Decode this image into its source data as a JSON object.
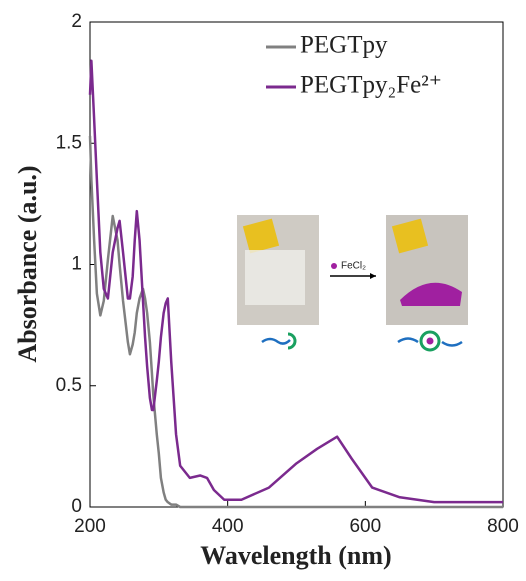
{
  "chart_data": {
    "type": "line",
    "xlabel": "Wavelength (nm)",
    "ylabel": "Absorbance (a.u.)",
    "annotation": "FeCl₂",
    "x": [
      200,
      202,
      206,
      210,
      215,
      220,
      226,
      233,
      240,
      243,
      248,
      255,
      258,
      262,
      265,
      268,
      272,
      277,
      280,
      283,
      287,
      290,
      292,
      297,
      300,
      303,
      307,
      310,
      313,
      318,
      325,
      331,
      345,
      360,
      370,
      380,
      395,
      420,
      460,
      500,
      530,
      559,
      580,
      610,
      650,
      700,
      800
    ],
    "series": [
      {
        "name": "PEGTpy",
        "color": "#808080",
        "values": [
          1.53,
          1.35,
          1.1,
          0.88,
          0.79,
          0.85,
          1.02,
          1.2,
          1.1,
          1.0,
          0.85,
          0.68,
          0.63,
          0.67,
          0.72,
          0.8,
          0.86,
          0.9,
          0.86,
          0.8,
          0.68,
          0.55,
          0.46,
          0.3,
          0.22,
          0.12,
          0.06,
          0.03,
          0.02,
          0.01,
          0.01,
          0,
          0,
          0,
          0,
          0,
          0,
          0,
          0,
          0,
          0,
          0,
          0,
          0,
          0,
          0,
          0
        ]
      },
      {
        "name": "PEGTpy₂Fe²⁺",
        "color": "#7b2a8e",
        "values": [
          1.7,
          1.84,
          1.6,
          1.35,
          1.05,
          0.9,
          0.86,
          1.05,
          1.15,
          1.18,
          1.05,
          0.86,
          0.86,
          0.95,
          1.1,
          1.22,
          1.1,
          0.85,
          0.7,
          0.58,
          0.45,
          0.4,
          0.4,
          0.52,
          0.6,
          0.7,
          0.8,
          0.84,
          0.86,
          0.6,
          0.3,
          0.17,
          0.12,
          0.13,
          0.12,
          0.07,
          0.03,
          0.03,
          0.08,
          0.18,
          0.24,
          0.29,
          0.2,
          0.08,
          0.04,
          0.02,
          0.02
        ]
      }
    ],
    "xlim": [
      200,
      800
    ],
    "xticks": [
      200,
      400,
      600,
      800
    ],
    "ylim": [
      0,
      2
    ],
    "yticks": [
      0,
      0.5,
      1,
      1.5,
      2
    ],
    "grid": false,
    "legend": "upper right"
  }
}
